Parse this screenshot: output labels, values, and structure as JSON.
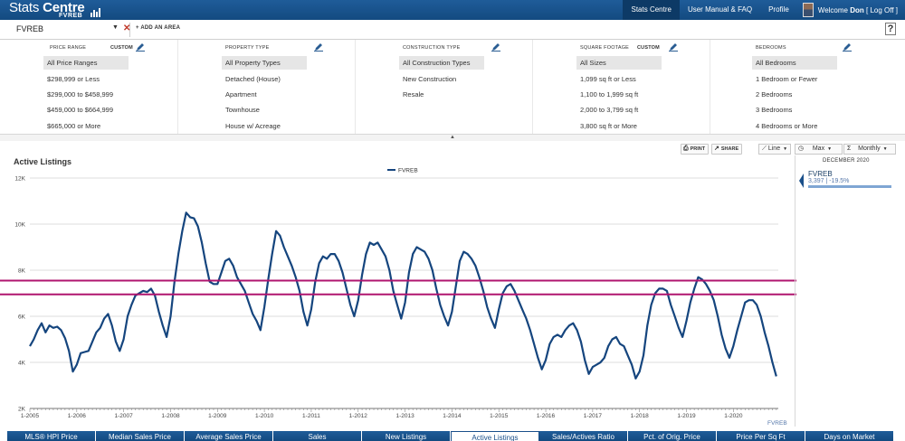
{
  "app": {
    "brand_title_plain": "Stats",
    "brand_title_bold": "Centre",
    "brand_sub": "FVREB"
  },
  "nav": {
    "items": [
      {
        "label": "Stats Centre",
        "active": true
      },
      {
        "label": "User Manual & FAQ",
        "active": false
      },
      {
        "label": "Profile",
        "active": false
      }
    ],
    "welcome_prefix": "Welcome",
    "user": "Don",
    "logoff": "[ Log Off ]"
  },
  "area": {
    "selected": "FVREB",
    "add_label": "+ ADD AN AREA",
    "help": "?"
  },
  "filters": [
    {
      "title": "PRICE RANGE",
      "custom": "CUSTOM",
      "options": [
        "All Price Ranges",
        "$298,999 or Less",
        "$299,000 to $458,999",
        "$459,000 to $664,999",
        "$665,000 or More"
      ],
      "selected": 0
    },
    {
      "title": "PROPERTY TYPE",
      "custom": "",
      "options": [
        "All Property Types",
        "Detached (House)",
        "Apartment",
        "Townhouse",
        "House w/ Acreage"
      ],
      "selected": 0
    },
    {
      "title": "CONSTRUCTION TYPE",
      "custom": "",
      "options": [
        "All Construction Types",
        "New Construction",
        "Resale"
      ],
      "selected": 0
    },
    {
      "title": "SQUARE FOOTAGE",
      "custom": "CUSTOM",
      "options": [
        "All Sizes",
        "1,099 sq ft or Less",
        "1,100 to 1,999 sq ft",
        "2,000 to 3,799 sq ft",
        "3,800 sq ft or More"
      ],
      "selected": 0
    },
    {
      "title": "BEDROOMS",
      "custom": "",
      "options": [
        "All Bedrooms",
        "1 Bedroom or Fewer",
        "2 Bedrooms",
        "3 Bedrooms",
        "4 Bedrooms or More"
      ],
      "selected": 0
    }
  ],
  "toolbar": {
    "print": "PRINT",
    "share": "SHARE",
    "chart_type": "Line",
    "range": "Max",
    "period": "Monthly"
  },
  "colors": {
    "nav_blue": "#1a5490",
    "series_line": "#15457e",
    "overlay_line": "#b0156f"
  },
  "chart_data": {
    "type": "line",
    "title": "Active Listings",
    "legend": "FVREB",
    "source_label": "FVREB",
    "ylim": [
      2000,
      12000
    ],
    "y_ticks": [
      2000,
      4000,
      6000,
      8000,
      10000,
      12000
    ],
    "y_tick_labels": [
      "2K",
      "4K",
      "6K",
      "8K",
      "10K",
      "12K"
    ],
    "x_tick_labels": [
      "1-2005",
      "1-2006",
      "1-2007",
      "1-2008",
      "1-2009",
      "1-2010",
      "1-2011",
      "1-2012",
      "1-2013",
      "1-2014",
      "1-2015",
      "1-2016",
      "1-2017",
      "1-2018",
      "1-2019",
      "1-2020"
    ],
    "x_start": "2005-01",
    "x_end": "2020-12",
    "series": [
      {
        "name": "FVREB",
        "values": [
          4700,
          5000,
          5400,
          5700,
          5300,
          5600,
          5500,
          5550,
          5400,
          5050,
          4500,
          3600,
          3900,
          4400,
          4450,
          4500,
          4900,
          5300,
          5500,
          5900,
          6100,
          5600,
          4900,
          4500,
          5000,
          6000,
          6500,
          6900,
          7000,
          7100,
          7050,
          7200,
          6900,
          6200,
          5600,
          5100,
          6000,
          7500,
          8700,
          9700,
          10500,
          10300,
          10250,
          9900,
          9200,
          8300,
          7500,
          7400,
          7400,
          7900,
          8400,
          8500,
          8200,
          7700,
          7400,
          7100,
          6600,
          6100,
          5800,
          5400,
          6400,
          7600,
          8700,
          9700,
          9500,
          9000,
          8600,
          8200,
          7700,
          7100,
          6200,
          5600,
          6300,
          7500,
          8300,
          8600,
          8500,
          8700,
          8700,
          8400,
          7900,
          7200,
          6500,
          6000,
          6700,
          7800,
          8700,
          9200,
          9100,
          9200,
          8900,
          8600,
          8000,
          7100,
          6500,
          5900,
          6600,
          7900,
          8700,
          9000,
          8900,
          8800,
          8500,
          8000,
          7200,
          6500,
          6000,
          5600,
          6200,
          7300,
          8400,
          8800,
          8700,
          8500,
          8200,
          7700,
          7100,
          6400,
          5900,
          5500,
          6300,
          7000,
          7300,
          7400,
          7100,
          6700,
          6300,
          5900,
          5400,
          4800,
          4200,
          3700,
          4100,
          4800,
          5100,
          5200,
          5100,
          5400,
          5600,
          5700,
          5400,
          4900,
          4100,
          3500,
          3800,
          3900,
          4000,
          4200,
          4700,
          5000,
          5100,
          4800,
          4700,
          4300,
          3900,
          3300,
          3600,
          4300,
          5600,
          6500,
          7000,
          7200,
          7200,
          7100,
          6500,
          6000,
          5500,
          5100,
          5800,
          6600,
          7200,
          7700,
          7600,
          7400,
          7100,
          6700,
          6000,
          5200,
          4600,
          4200,
          4700,
          5400,
          6000,
          6600,
          6700,
          6700,
          6500,
          6000,
          5300,
          4700,
          4000,
          3397
        ]
      }
    ],
    "reference_lines": [
      7550,
      6950
    ]
  },
  "panel": {
    "date": "DECEMBER 2020",
    "name": "FVREB",
    "value": "3,397 | -19.5%"
  },
  "tabs": [
    {
      "label": "MLS® HPI Price",
      "active": false
    },
    {
      "label": "Median Sales Price",
      "active": false
    },
    {
      "label": "Average Sales Price",
      "active": false
    },
    {
      "label": "Sales",
      "active": false
    },
    {
      "label": "New Listings",
      "active": false
    },
    {
      "label": "Active Listings",
      "active": true
    },
    {
      "label": "Sales/Actives Ratio",
      "active": false
    },
    {
      "label": "Pct. of Orig. Price",
      "active": false
    },
    {
      "label": "Price Per Sq Ft",
      "active": false
    },
    {
      "label": "Days on Market",
      "active": false
    }
  ]
}
